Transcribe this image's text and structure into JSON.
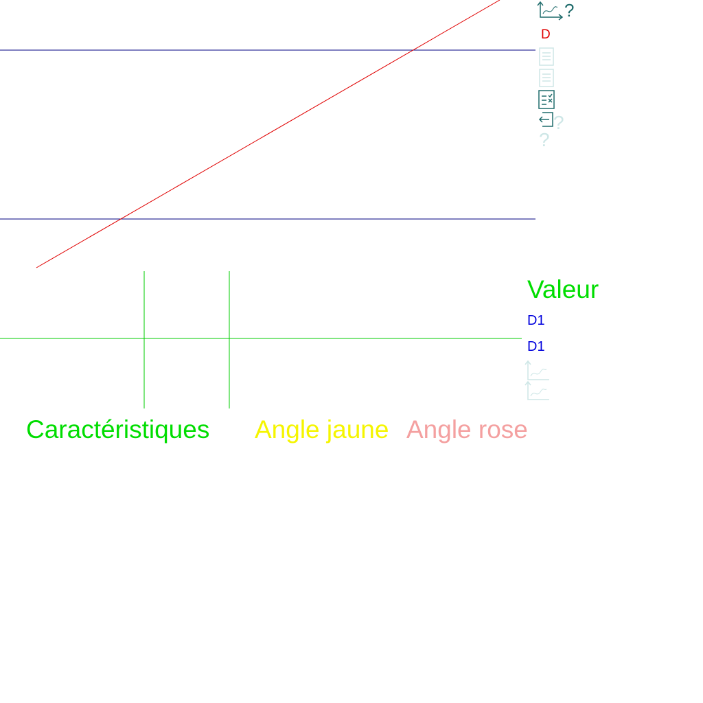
{
  "canvas": {
    "line_label": "D",
    "value_title": "Valeur",
    "value_items": [
      "D1",
      "D1"
    ],
    "legend": [
      "Caractéristiques",
      "Angle jaune",
      "Angle rose"
    ]
  },
  "toolbar": {
    "help_marks": [
      "?",
      "?",
      "?"
    ]
  }
}
